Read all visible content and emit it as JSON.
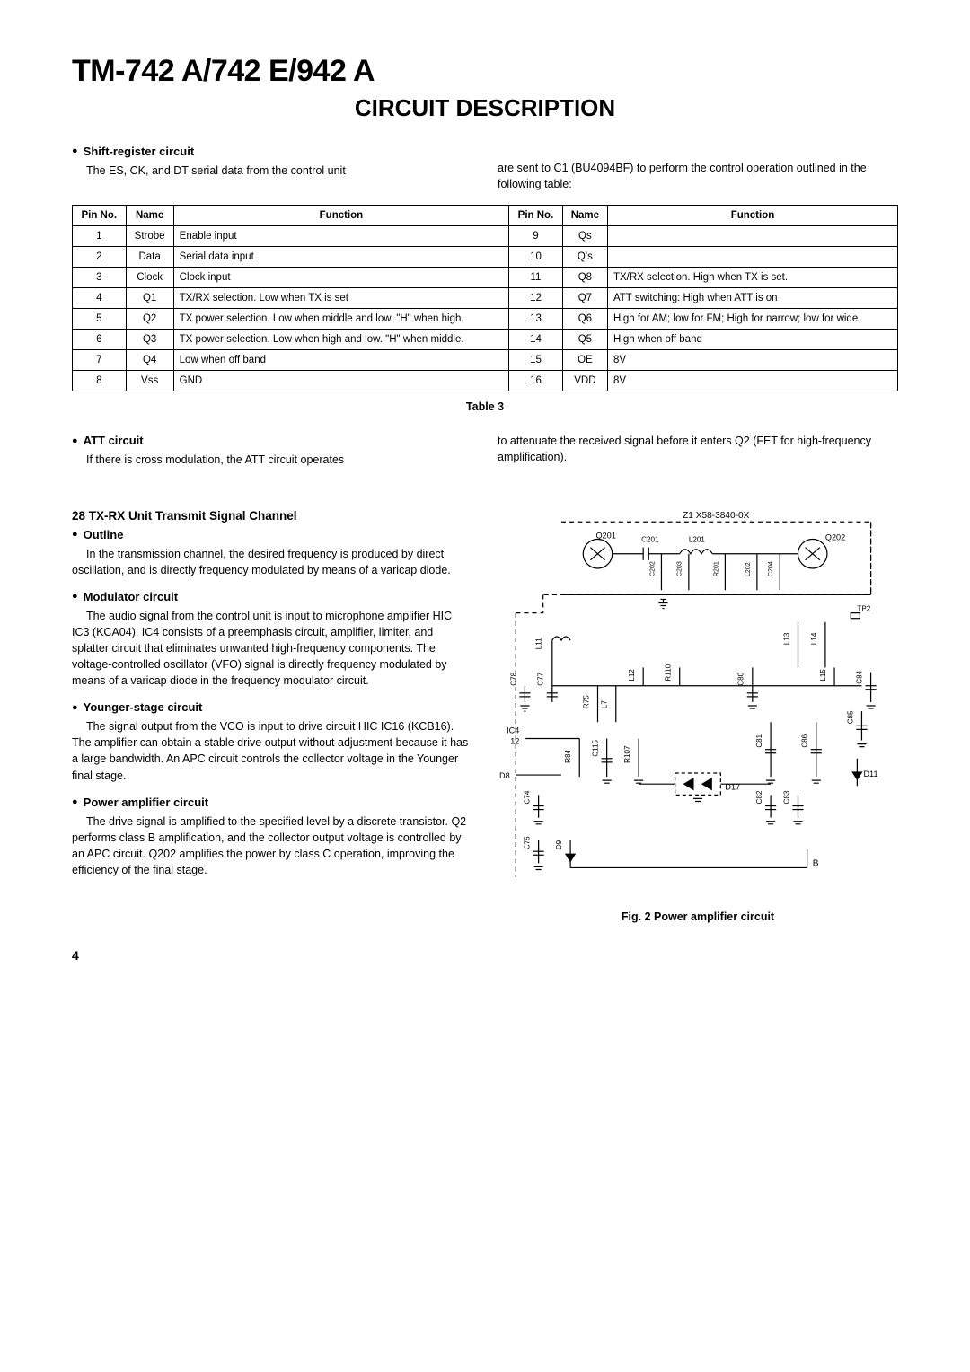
{
  "title": "TM-742 A/742 E/942 A",
  "subtitle": "CIRCUIT DESCRIPTION",
  "intro": {
    "heading": "Shift-register circuit",
    "left_text": "The ES, CK, and DT serial data from the control unit",
    "right_text": "are sent to C1 (BU4094BF) to perform the control operation outlined in the following table:"
  },
  "table3": {
    "caption": "Table 3",
    "headers": [
      "Pin No.",
      "Name",
      "Function",
      "Pin No.",
      "Name",
      "Function"
    ],
    "rows": [
      [
        "1",
        "Strobe",
        "Enable input",
        "9",
        "Qs",
        ""
      ],
      [
        "2",
        "Data",
        "Serial data input",
        "10",
        "Q's",
        ""
      ],
      [
        "3",
        "Clock",
        "Clock input",
        "11",
        "Q8",
        "TX/RX selection. High when TX is set."
      ],
      [
        "4",
        "Q1",
        "TX/RX selection. Low when TX is set",
        "12",
        "Q7",
        "ATT switching: High when ATT is on"
      ],
      [
        "5",
        "Q2",
        "TX power selection. Low when middle and low. \"H\" when high.",
        "13",
        "Q6",
        "High for AM; low for FM; High for narrow; low for wide"
      ],
      [
        "6",
        "Q3",
        "TX power selection. Low when high and low. \"H\" when middle.",
        "14",
        "Q5",
        "High when off band"
      ],
      [
        "7",
        "Q4",
        "Low when off band",
        "15",
        "OE",
        "8V"
      ],
      [
        "8",
        "Vss",
        "GND",
        "16",
        "VDD",
        "8V"
      ]
    ]
  },
  "att": {
    "heading": "ATT circuit",
    "left_text": "If there is cross modulation, the ATT circuit operates",
    "right_text": "to attenuate the received signal before it enters Q2 (FET for high-frequency amplification)."
  },
  "section28": "28 TX-RX Unit Transmit Signal Channel",
  "outline": {
    "heading": "Outline",
    "text": "In the transmission channel, the desired frequency is produced by direct oscillation, and is directly frequency modulated by means of a varicap diode."
  },
  "modulator": {
    "heading": "Modulator circuit",
    "text": "The audio signal from the control unit is input to microphone amplifier HIC IC3 (KCA04). IC4 consists of a preemphasis circuit, amplifier, limiter, and splatter circuit that eliminates unwanted high-frequency components. The voltage-controlled oscillator (VFO) signal is directly frequency modulated by means of a varicap diode in the frequency modulator circuit."
  },
  "younger": {
    "heading": "Younger-stage circuit",
    "text": "The signal output from the VCO is input to drive circuit HIC IC16 (KCB16). The amplifier can obtain a stable drive output without adjustment because it has a large bandwidth. An APC circuit controls the collector voltage in the Younger final stage."
  },
  "poweramp": {
    "heading": "Power amplifier circuit",
    "text": "The drive signal is amplified to the specified level by a discrete transistor. Q2 performs class B amplification, and the collector output voltage is controlled by an APC circuit. Q202 amplifies the power by class C operation, improving the efficiency of the final stage."
  },
  "figure": {
    "caption": "Fig. 2  Power amplifier circuit",
    "board_label": "Z1  X58-3840-0X",
    "refs": {
      "Q201": "Q201",
      "Q202": "Q202",
      "C201": "C201",
      "L201": "L201",
      "C202": "C202",
      "C203": "C203",
      "R201": "R201",
      "L202": "L202",
      "C204": "C204",
      "TP2": "TP2",
      "L11": "L11",
      "L13": "L13",
      "L14": "L14",
      "C78": "C78",
      "C77": "C77",
      "L12": "L12",
      "R110": "R110",
      "C80": "C80",
      "L15": "L15",
      "C84": "C84",
      "L7": "L7",
      "R75": "R75",
      "IC4": "IC4",
      "pin12": "12",
      "R84": "R84",
      "C115": "C115",
      "R107": "R107",
      "C81": "C81",
      "C86": "C86",
      "C85": "C85",
      "D8": "D8",
      "D17": "D17",
      "D11": "D11",
      "C74": "C74",
      "C82": "C82",
      "C83": "C83",
      "C75": "C75",
      "D9": "D9",
      "B": "B"
    }
  },
  "page_number": "4",
  "colors": {
    "text": "#000000",
    "bg": "#ffffff",
    "stroke": "#000000"
  }
}
